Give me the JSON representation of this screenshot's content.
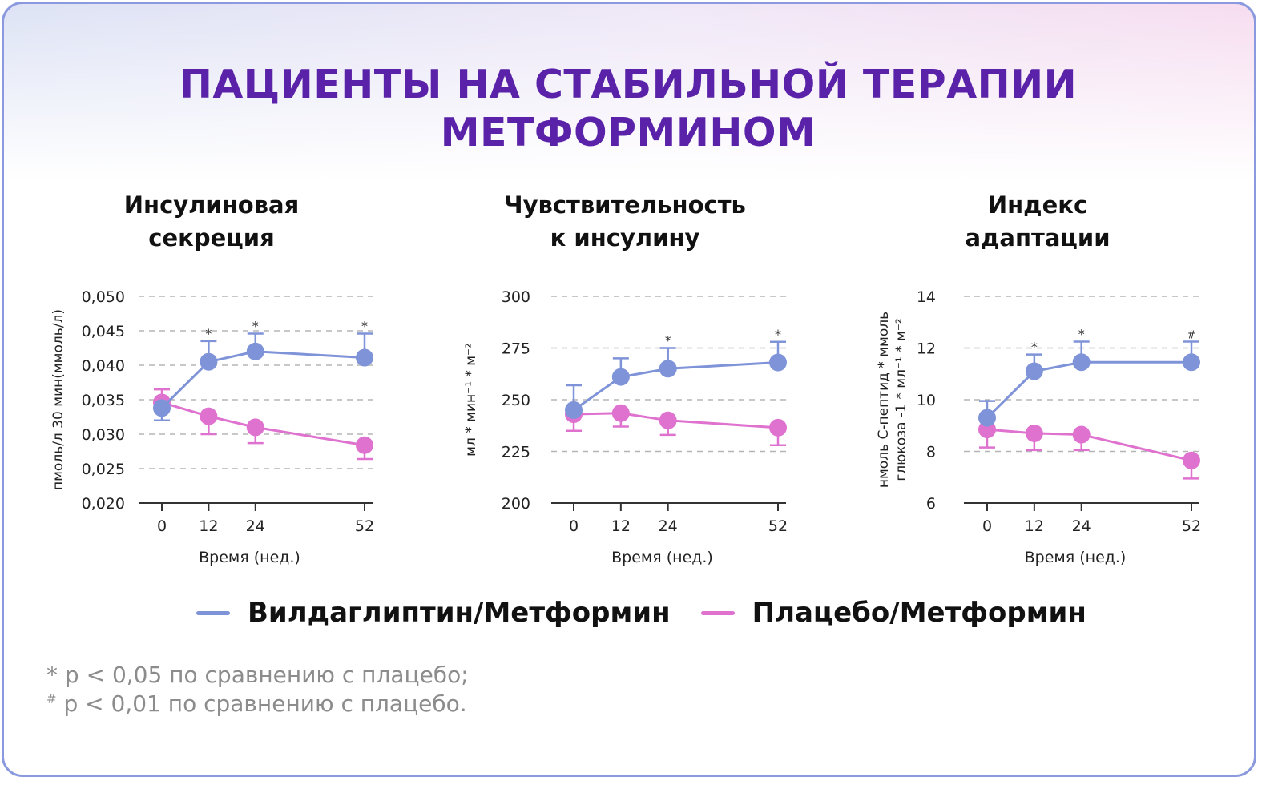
{
  "title_line1": "ПАЦИЕНТЫ НА СТАБИЛЬНОЙ ТЕРАПИИ",
  "title_line2": "МЕТФОРМИНОМ",
  "colors": {
    "vildagliptin": "#7f93d8",
    "placebo": "#df72cf",
    "title": "#5a22a8"
  },
  "legend": [
    {
      "label": "Вилдаглиптин/Метформин",
      "color": "#7f93d8"
    },
    {
      "label": "Плацебо/Метформин",
      "color": "#df72cf"
    }
  ],
  "footnotes": [
    {
      "mark": "*",
      "text": "p < 0,05 по сравнению с плацебо;"
    },
    {
      "mark": "#",
      "text": "p < 0,01 по сравнению с плацебо."
    }
  ],
  "chart_data": [
    {
      "type": "line",
      "title_line1": "Инсулиновая",
      "title_line2": "секреция",
      "xlabel": "Время (нед.)",
      "ylabel": "пмоль/л 30 мин(ммоль/л)",
      "x": [
        0,
        12,
        24,
        52
      ],
      "xticks": [
        "0",
        "12",
        "24",
        "52"
      ],
      "ylim": [
        0.02,
        0.05
      ],
      "yticks": [
        "0,020",
        "0,025",
        "0,030",
        "0,035",
        "0,040",
        "0,045",
        "0,050"
      ],
      "grid": true,
      "series": [
        {
          "name": "Вилдаглиптин/Метформин",
          "values": [
            0.0338,
            0.0405,
            0.042,
            0.0411
          ],
          "error_ends": [
            0.032,
            0.0435,
            0.0446,
            0.0446
          ]
        },
        {
          "name": "Плацебо/Метформин",
          "values": [
            0.0346,
            0.0326,
            0.031,
            0.0284
          ],
          "error_ends": [
            0.0365,
            0.03,
            0.0287,
            0.0264
          ]
        }
      ],
      "annotations": [
        "",
        "*",
        "*",
        "*"
      ]
    },
    {
      "type": "line",
      "title_line1": "Чувствительность",
      "title_line2": "к инсулину",
      "xlabel": "Время (нед.)",
      "ylabel": "мл * мин⁻¹ * м⁻²",
      "x": [
        0,
        12,
        24,
        52
      ],
      "xticks": [
        "0",
        "12",
        "24",
        "52"
      ],
      "ylim": [
        200,
        300
      ],
      "yticks": [
        "200",
        "225",
        "250",
        "275",
        "300"
      ],
      "grid": true,
      "series": [
        {
          "name": "Вилдаглиптин/Метформин",
          "values": [
            245,
            261,
            265,
            268
          ],
          "error_ends": [
            257,
            270,
            275,
            278
          ]
        },
        {
          "name": "Плацебо/Метформин",
          "values": [
            243,
            243.5,
            240,
            236.5
          ],
          "error_ends": [
            235,
            237,
            233,
            228
          ]
        }
      ],
      "annotations": [
        "",
        "",
        "*",
        "*"
      ]
    },
    {
      "type": "line",
      "title_line1": "Индекс",
      "title_line2": "адаптации",
      "xlabel": "Время (нед.)",
      "ylabel": "нмоль С-пептид * ммоль",
      "ylabel2": "глюкоза -1 * мл⁻¹ * м⁻²",
      "x": [
        0,
        12,
        24,
        52
      ],
      "xticks": [
        "0",
        "12",
        "24",
        "52"
      ],
      "ylim": [
        6,
        14
      ],
      "yticks": [
        "6",
        "8",
        "10",
        "12",
        "14"
      ],
      "grid": true,
      "series": [
        {
          "name": "Вилдаглиптин/Метформин",
          "values": [
            9.3,
            11.1,
            11.45,
            11.45
          ],
          "error_ends": [
            9.95,
            11.75,
            12.25,
            12.25
          ]
        },
        {
          "name": "Плацебо/Метформин",
          "values": [
            8.85,
            8.7,
            8.65,
            7.65
          ],
          "error_ends": [
            8.15,
            8.05,
            8.05,
            6.95
          ]
        }
      ],
      "annotations": [
        "",
        "*",
        "*",
        "#"
      ]
    }
  ]
}
